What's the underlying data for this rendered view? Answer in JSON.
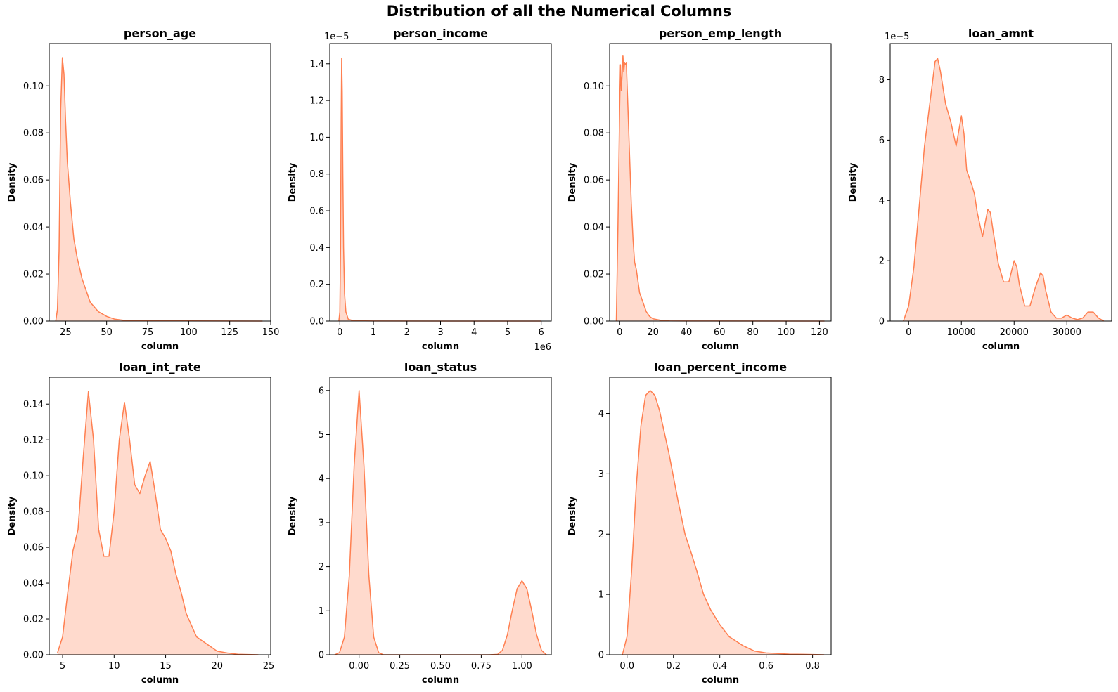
{
  "figure": {
    "title": "Distribution of all the Numerical Columns"
  },
  "style": {
    "line_color": "#ff7f50",
    "fill_color": "#ffdacd"
  },
  "chart_data": [
    {
      "type": "area",
      "title": "person_age",
      "xlabel": "column",
      "ylabel": "Density",
      "xlim": [
        15,
        150
      ],
      "ylim": [
        0,
        0.118
      ],
      "offset_label": "",
      "xticks": [
        25,
        50,
        75,
        100,
        125,
        150
      ],
      "xtick_labels": [
        "25",
        "50",
        "75",
        "100",
        "125",
        "150"
      ],
      "yticks": [
        0,
        0.02,
        0.04,
        0.06,
        0.08,
        0.1
      ],
      "ytick_labels": [
        "0.00",
        "0.02",
        "0.04",
        "0.06",
        "0.08",
        "0.10"
      ],
      "series": [
        {
          "x": [
            19,
            20,
            21,
            22,
            23,
            24,
            25,
            26,
            28,
            30,
            32,
            35,
            40,
            45,
            50,
            55,
            60,
            70,
            80,
            100,
            145
          ],
          "y": [
            0,
            0.005,
            0.03,
            0.09,
            0.112,
            0.105,
            0.085,
            0.068,
            0.05,
            0.035,
            0.027,
            0.018,
            0.008,
            0.004,
            0.002,
            0.0008,
            0.0004,
            0.0002,
            0.0001,
            5e-05,
            0
          ]
        }
      ]
    },
    {
      "type": "area",
      "title": "person_income",
      "xlabel": "column",
      "ylabel": "Density",
      "xlim": [
        -300000,
        6300000
      ],
      "ylim": [
        0,
        1.51e-05
      ],
      "offset_label": "1e6",
      "yoffset_label": "1e−5",
      "xticks": [
        0,
        1000000,
        2000000,
        3000000,
        4000000,
        5000000,
        6000000
      ],
      "xtick_labels": [
        "0",
        "1",
        "2",
        "3",
        "4",
        "5",
        "6"
      ],
      "yticks": [
        0,
        2e-06,
        4e-06,
        6e-06,
        8e-06,
        1e-05,
        1.2e-05,
        1.4e-05
      ],
      "ytick_labels": [
        "0.0",
        "0.2",
        "0.4",
        "0.6",
        "0.8",
        "1.0",
        "1.2",
        "1.4"
      ],
      "series": [
        {
          "x": [
            -30000,
            0,
            20000,
            40000,
            55000,
            70000,
            90000,
            110000,
            140000,
            180000,
            250000,
            400000,
            1000000,
            6000000
          ],
          "y": [
            0,
            5e-07,
            4e-06,
            1.1e-05,
            1.43e-05,
            1.25e-05,
            8e-06,
            4e-06,
            1.5e-06,
            5e-07,
            1e-07,
            2e-08,
            5e-09,
            0
          ]
        }
      ]
    },
    {
      "type": "area",
      "title": "person_emp_length",
      "xlabel": "column",
      "ylabel": "Density",
      "xlim": [
        -6,
        127
      ],
      "ylim": [
        0,
        0.118
      ],
      "offset_label": "",
      "xticks": [
        0,
        20,
        40,
        60,
        80,
        100,
        120
      ],
      "xtick_labels": [
        "0",
        "20",
        "40",
        "60",
        "80",
        "100",
        "120"
      ],
      "yticks": [
        0,
        0.02,
        0.04,
        0.06,
        0.08,
        0.1
      ],
      "ytick_labels": [
        "0.00",
        "0.02",
        "0.04",
        "0.06",
        "0.08",
        "0.10"
      ],
      "series": [
        {
          "x": [
            -2,
            -1,
            0,
            0.5,
            1,
            1.5,
            2,
            2.5,
            3,
            3.5,
            4,
            4.5,
            5,
            6,
            7,
            8,
            9,
            10,
            11,
            12,
            14,
            16,
            18,
            20,
            25,
            30,
            40,
            123
          ],
          "y": [
            0,
            0.04,
            0.09,
            0.109,
            0.098,
            0.105,
            0.113,
            0.106,
            0.11,
            0.109,
            0.11,
            0.1,
            0.09,
            0.07,
            0.05,
            0.035,
            0.025,
            0.022,
            0.017,
            0.012,
            0.008,
            0.004,
            0.002,
            0.001,
            0.0003,
            0.0001,
            3e-05,
            0
          ]
        }
      ]
    },
    {
      "type": "area",
      "title": "loan_amnt",
      "xlabel": "column",
      "ylabel": "Density",
      "xlim": [
        -3500,
        38500
      ],
      "ylim": [
        0,
        9.2e-06
      ],
      "offset_label": "",
      "yoffset_label": "1e−5",
      "xticks": [
        0,
        10000,
        20000,
        30000
      ],
      "xtick_labels": [
        "0",
        "10000",
        "20000",
        "30000"
      ],
      "yticks": [
        0,
        2e-06,
        4e-06,
        6e-06,
        8e-06
      ],
      "ytick_labels": [
        "0",
        "2",
        "4",
        "6",
        "8"
      ],
      "series": [
        {
          "x": [
            -1000,
            0,
            1000,
            2000,
            3000,
            4000,
            5000,
            5500,
            6000,
            7000,
            8000,
            9000,
            9500,
            10000,
            10500,
            11000,
            12000,
            12500,
            13000,
            14000,
            15000,
            15500,
            16000,
            17000,
            18000,
            19000,
            20000,
            20500,
            21000,
            22000,
            23000,
            24000,
            25000,
            25500,
            26000,
            27000,
            28000,
            29000,
            30000,
            31000,
            32000,
            33000,
            34000,
            35000,
            36000,
            37000
          ],
          "y": [
            0,
            5e-07,
            1.8e-06,
            3.8e-06,
            5.8e-06,
            7.2e-06,
            8.6e-06,
            8.7e-06,
            8.3e-06,
            7.2e-06,
            6.6e-06,
            5.8e-06,
            6.3e-06,
            6.8e-06,
            6.2e-06,
            5e-06,
            4.5e-06,
            4.2e-06,
            3.6e-06,
            2.8e-06,
            3.7e-06,
            3.6e-06,
            3e-06,
            1.9e-06,
            1.3e-06,
            1.3e-06,
            2e-06,
            1.8e-06,
            1.2e-06,
            5e-07,
            5e-07,
            1.1e-06,
            1.6e-06,
            1.5e-06,
            1e-06,
            3e-07,
            1e-07,
            1e-07,
            2e-07,
            1e-07,
            5e-08,
            1e-07,
            3e-07,
            3e-07,
            1e-07,
            0
          ]
        }
      ]
    },
    {
      "type": "area",
      "title": "loan_int_rate",
      "xlabel": "column",
      "ylabel": "Density",
      "xlim": [
        3.7,
        25.2
      ],
      "ylim": [
        0,
        0.155
      ],
      "offset_label": "",
      "xticks": [
        5,
        10,
        15,
        20,
        25
      ],
      "xtick_labels": [
        "5",
        "10",
        "15",
        "20",
        "25"
      ],
      "yticks": [
        0,
        0.02,
        0.04,
        0.06,
        0.08,
        0.1,
        0.12,
        0.14
      ],
      "ytick_labels": [
        "0.00",
        "0.02",
        "0.04",
        "0.06",
        "0.08",
        "0.10",
        "0.12",
        "0.14"
      ],
      "series": [
        {
          "x": [
            4.5,
            5,
            5.5,
            6,
            6.5,
            7,
            7.5,
            8,
            8.5,
            9,
            9.5,
            10,
            10.5,
            11,
            11.5,
            12,
            12.5,
            13,
            13.5,
            14,
            14.5,
            15,
            15.5,
            16,
            16.5,
            17,
            18,
            19,
            20,
            21,
            22,
            24
          ],
          "y": [
            0.001,
            0.01,
            0.035,
            0.058,
            0.07,
            0.11,
            0.147,
            0.12,
            0.07,
            0.055,
            0.055,
            0.08,
            0.12,
            0.141,
            0.12,
            0.095,
            0.09,
            0.1,
            0.108,
            0.09,
            0.07,
            0.065,
            0.058,
            0.045,
            0.035,
            0.023,
            0.01,
            0.006,
            0.002,
            0.001,
            0.0003,
            0
          ]
        }
      ]
    },
    {
      "type": "area",
      "title": "loan_status",
      "xlabel": "column",
      "ylabel": "Density",
      "xlim": [
        -0.18,
        1.18
      ],
      "ylim": [
        0,
        6.3
      ],
      "offset_label": "",
      "xticks": [
        0,
        0.25,
        0.5,
        0.75,
        1.0
      ],
      "xtick_labels": [
        "0.00",
        "0.25",
        "0.50",
        "0.75",
        "1.00"
      ],
      "yticks": [
        0,
        1,
        2,
        3,
        4,
        5,
        6
      ],
      "ytick_labels": [
        "0",
        "1",
        "2",
        "3",
        "4",
        "5",
        "6"
      ],
      "series": [
        {
          "x": [
            -0.15,
            -0.12,
            -0.09,
            -0.06,
            -0.03,
            0,
            0.03,
            0.06,
            0.09,
            0.12,
            0.15,
            0.2,
            0.5,
            0.8,
            0.85,
            0.88,
            0.91,
            0.94,
            0.97,
            1.0,
            1.03,
            1.06,
            1.09,
            1.12,
            1.15
          ],
          "y": [
            0,
            0.05,
            0.4,
            1.8,
            4.3,
            6.0,
            4.3,
            1.8,
            0.4,
            0.05,
            0,
            0,
            0,
            0,
            0.01,
            0.1,
            0.45,
            1.0,
            1.5,
            1.68,
            1.5,
            1.0,
            0.45,
            0.1,
            0
          ]
        }
      ]
    },
    {
      "type": "area",
      "title": "loan_percent_income",
      "xlabel": "column",
      "ylabel": "Density",
      "xlim": [
        -0.075,
        0.88
      ],
      "ylim": [
        0,
        4.6
      ],
      "offset_label": "",
      "xticks": [
        0,
        0.2,
        0.4,
        0.6,
        0.8
      ],
      "xtick_labels": [
        "0.0",
        "0.2",
        "0.4",
        "0.6",
        "0.8"
      ],
      "yticks": [
        0,
        1,
        2,
        3,
        4
      ],
      "ytick_labels": [
        "0",
        "1",
        "2",
        "3",
        "4"
      ],
      "series": [
        {
          "x": [
            -0.02,
            0,
            0.02,
            0.04,
            0.06,
            0.08,
            0.1,
            0.12,
            0.14,
            0.16,
            0.18,
            0.2,
            0.22,
            0.25,
            0.28,
            0.3,
            0.33,
            0.36,
            0.4,
            0.44,
            0.48,
            0.5,
            0.55,
            0.6,
            0.65,
            0.7,
            0.8,
            0.85
          ],
          "y": [
            0,
            0.3,
            1.4,
            2.8,
            3.8,
            4.3,
            4.38,
            4.3,
            4.05,
            3.7,
            3.35,
            2.95,
            2.55,
            2.0,
            1.65,
            1.4,
            1.0,
            0.75,
            0.5,
            0.3,
            0.2,
            0.15,
            0.06,
            0.03,
            0.02,
            0.01,
            0.005,
            0
          ]
        }
      ]
    }
  ]
}
